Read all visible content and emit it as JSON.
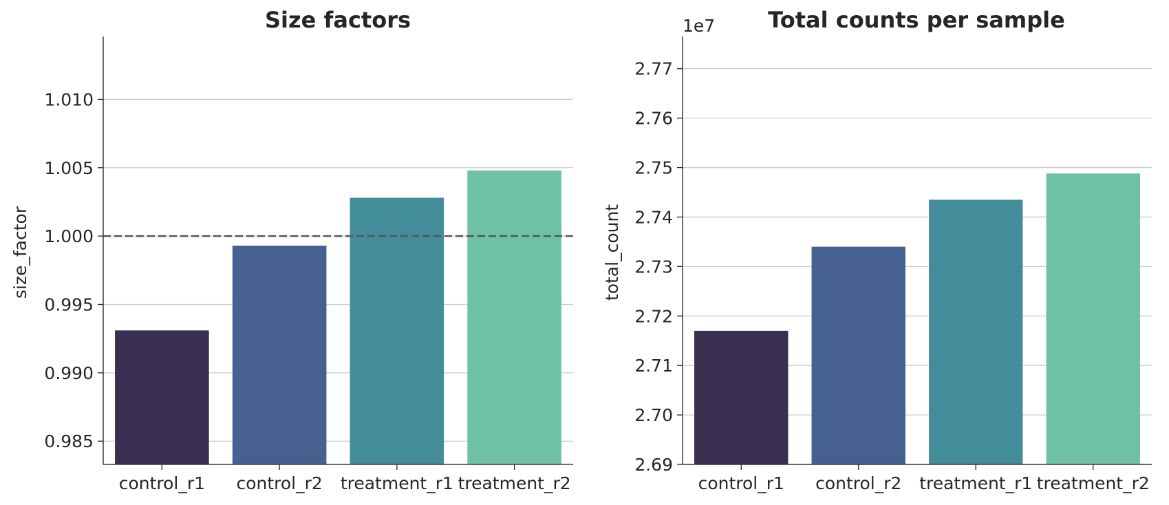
{
  "chart_data": [
    {
      "type": "bar",
      "title": "Size factors",
      "xlabel": "",
      "ylabel": "size_factor",
      "categories": [
        "control_r1",
        "control_r2",
        "treatment_r1",
        "treatment_r2"
      ],
      "values": [
        0.9931,
        0.9993,
        1.0028,
        1.0048
      ],
      "ylim": [
        0.9833,
        1.0146
      ],
      "yticks": [
        0.985,
        0.99,
        0.995,
        1.0,
        1.005,
        1.01
      ],
      "ytick_labels": [
        "0.985",
        "0.990",
        "0.995",
        "1.000",
        "1.005",
        "1.010"
      ],
      "reference_line": {
        "y": 1.0,
        "style": "dashed",
        "color": "#555555"
      },
      "bar_colors": [
        "#3b2f51",
        "#46618f",
        "#438c9a",
        "#6ec1a7"
      ],
      "grid": "y"
    },
    {
      "type": "bar",
      "title": "Total counts per sample",
      "xlabel": "",
      "ylabel": "total_count",
      "offset_label": "1e7",
      "categories": [
        "control_r1",
        "control_r2",
        "treatment_r1",
        "treatment_r2"
      ],
      "values": [
        2.717,
        2.734,
        2.7435,
        2.7488
      ],
      "ylim": [
        2.69,
        2.7765
      ],
      "yticks": [
        2.69,
        2.7,
        2.71,
        2.72,
        2.73,
        2.74,
        2.75,
        2.76,
        2.77
      ],
      "ytick_labels": [
        "2.69",
        "2.70",
        "2.71",
        "2.72",
        "2.73",
        "2.74",
        "2.75",
        "2.76",
        "2.77"
      ],
      "bar_colors": [
        "#3b2f51",
        "#46618f",
        "#438c9a",
        "#6ec1a7"
      ],
      "grid": "y"
    }
  ]
}
